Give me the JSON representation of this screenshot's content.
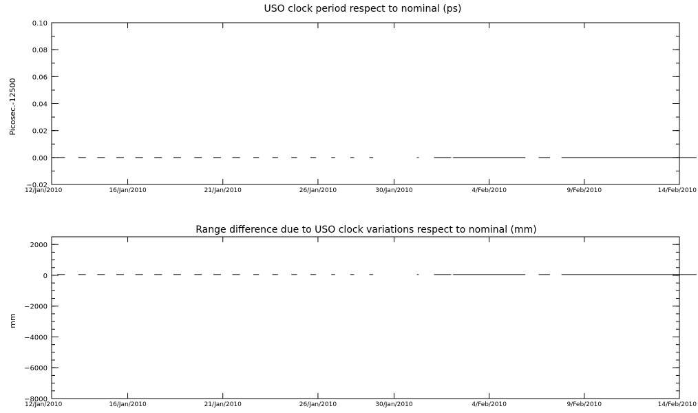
{
  "chart_data": [
    {
      "type": "line",
      "title": "USO clock period respect to nominal (ps)",
      "ylabel": "Picosec.-12500",
      "xlabel": "",
      "x_tick_labels": [
        "12/Jan/2010",
        "16/Jan/2010",
        "21/Jan/2010",
        "26/Jan/2010",
        "30/Jan/2010",
        "4/Feb/2010",
        "9/Feb/2010",
        "14/Feb/2010"
      ],
      "y_tick_labels": [
        "-0.02",
        "0.00",
        "0.02",
        "0.04",
        "0.06",
        "0.08",
        "0.10"
      ],
      "ylim": [
        -0.02,
        0.1
      ],
      "y_major_step": 0.02,
      "y_minor_step": 0.01,
      "series": [
        {
          "y": 0.0,
          "segments": [
            [
              0.3,
              0.7
            ],
            [
              1.4,
              1.8
            ],
            [
              2.4,
              2.8
            ],
            [
              3.4,
              3.8
            ],
            [
              4.4,
              4.8
            ],
            [
              5.4,
              5.8
            ],
            [
              6.4,
              6.8
            ],
            [
              7.5,
              7.9
            ],
            [
              8.5,
              8.9
            ],
            [
              9.5,
              9.9
            ],
            [
              10.6,
              10.9
            ],
            [
              11.6,
              11.9
            ],
            [
              12.6,
              12.9
            ],
            [
              13.6,
              13.9
            ],
            [
              14.7,
              14.9
            ],
            [
              15.7,
              15.9
            ],
            [
              16.7,
              16.9
            ],
            [
              19.2,
              19.3
            ],
            [
              20.1,
              21.0
            ],
            [
              21.1,
              24.9
            ],
            [
              25.6,
              26.2
            ],
            [
              26.8,
              33.9
            ]
          ]
        }
      ]
    },
    {
      "type": "line",
      "title": "Range difference due to USO clock variations respect to nominal (mm)",
      "ylabel": "mm",
      "xlabel": "",
      "x_tick_labels": [
        "12/Jan/2010",
        "16/Jan/2010",
        "21/Jan/2010",
        "26/Jan/2010",
        "30/Jan/2010",
        "4/Feb/2010",
        "9/Feb/2010",
        "14/Feb/2010"
      ],
      "y_tick_labels": [
        "-8000",
        "-6000",
        "-4000",
        "-2000",
        "0",
        "2000"
      ],
      "ylim": [
        -8000,
        2500
      ],
      "y_major_step": 2000,
      "y_minor_step": 500,
      "series": [
        {
          "y": 50,
          "segments": [
            [
              0.3,
              0.7
            ],
            [
              1.4,
              1.8
            ],
            [
              2.4,
              2.8
            ],
            [
              3.4,
              3.8
            ],
            [
              4.4,
              4.8
            ],
            [
              5.4,
              5.8
            ],
            [
              6.4,
              6.8
            ],
            [
              7.5,
              7.9
            ],
            [
              8.5,
              8.9
            ],
            [
              9.5,
              9.9
            ],
            [
              10.6,
              10.9
            ],
            [
              11.6,
              11.9
            ],
            [
              12.6,
              12.9
            ],
            [
              13.6,
              13.9
            ],
            [
              14.7,
              14.9
            ],
            [
              15.7,
              15.9
            ],
            [
              16.7,
              16.9
            ],
            [
              19.2,
              19.3
            ],
            [
              20.1,
              21.0
            ],
            [
              21.1,
              24.9
            ],
            [
              25.6,
              26.2
            ],
            [
              26.8,
              33.9
            ]
          ]
        }
      ]
    }
  ]
}
